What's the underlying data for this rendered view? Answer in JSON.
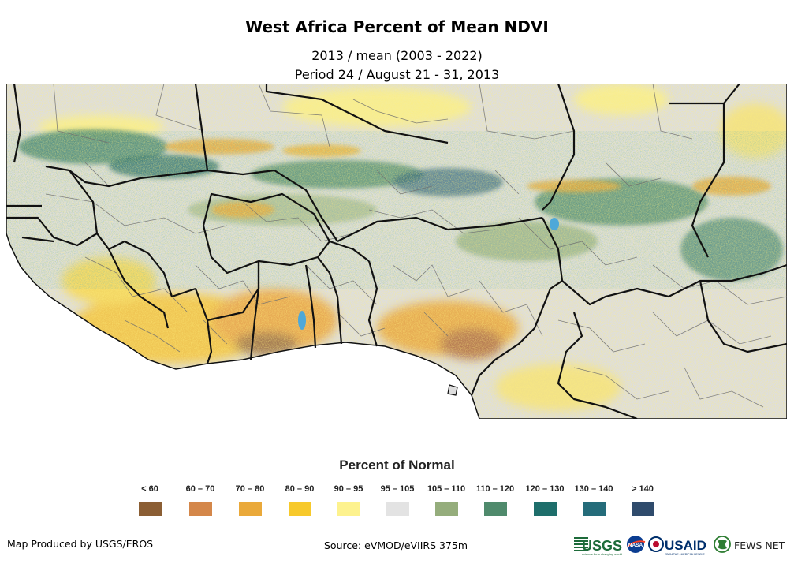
{
  "title": "West Africa Percent of Mean NDVI",
  "subtitle_line1": "2013 / mean (2003 - 2022)",
  "subtitle_line2": "Period 24 / August 21 - 31, 2013",
  "legend": {
    "title": "Percent of Normal",
    "items": [
      {
        "label": "< 60",
        "color": "#8b5e34"
      },
      {
        "label": "60 – 70",
        "color": "#d4874a"
      },
      {
        "label": "70 – 80",
        "color": "#eaa93a"
      },
      {
        "label": "80 – 90",
        "color": "#f7c92b"
      },
      {
        "label": "90 – 95",
        "color": "#fdf28e"
      },
      {
        "label": "95 – 105",
        "color": "#e3e3e3"
      },
      {
        "label": "105 – 110",
        "color": "#95ad7c"
      },
      {
        "label": "110 – 120",
        "color": "#4f8a6c"
      },
      {
        "label": "120 – 130",
        "color": "#1e6e6b"
      },
      {
        "label": "130 – 140",
        "color": "#256c7a"
      },
      {
        "label": "> 140",
        "color": "#2f4b6c"
      }
    ]
  },
  "footer": {
    "produced_by": "Map Produced by USGS/EROS",
    "source": "Source: eVMOD/eVIIRS 375m"
  },
  "logos": {
    "usgs": "USGS",
    "usgs_tagline": "science for a changing world",
    "nasa": "NASA",
    "usaid": "USAID",
    "usaid_tagline": "FROM THE AMERICAN PEOPLE",
    "fewsnet": "FEWS NET"
  }
}
